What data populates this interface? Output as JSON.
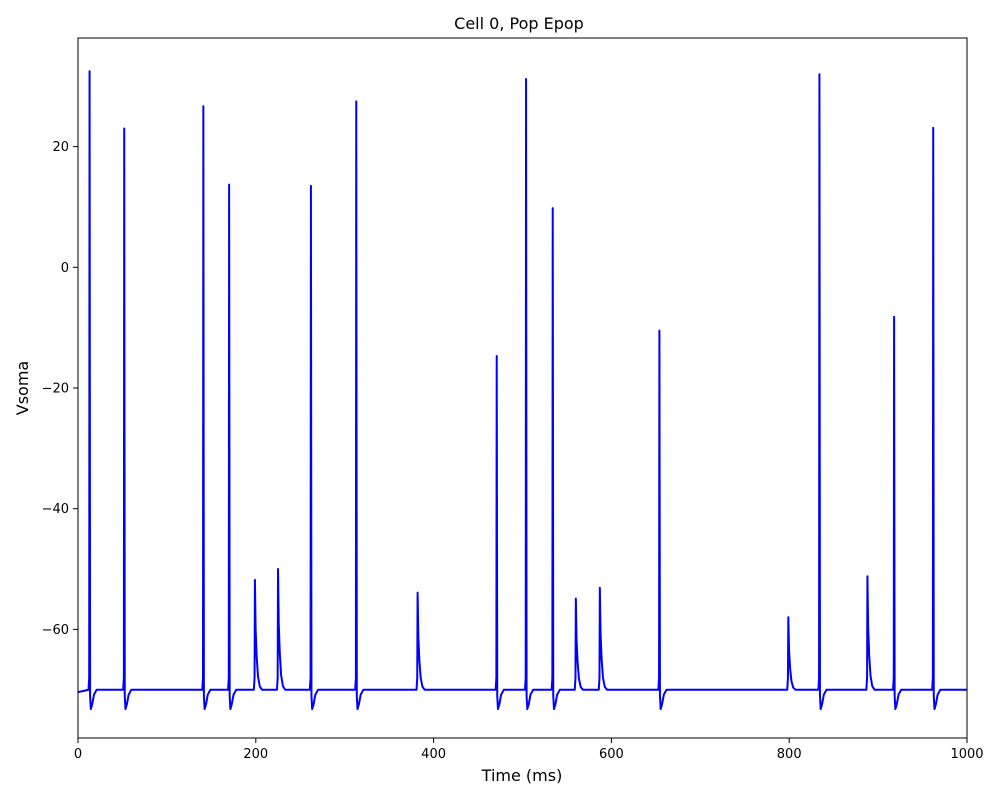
{
  "chart_data": {
    "type": "line",
    "title": "Cell 0, Pop Epop",
    "xlabel": "Time (ms)",
    "ylabel": "Vsoma",
    "xlim": [
      0,
      1000
    ],
    "ylim": [
      -78,
      38
    ],
    "x_ticks": [
      0,
      200,
      400,
      600,
      800,
      1000
    ],
    "x_tick_labels": [
      "0",
      "200",
      "400",
      "600",
      "800",
      "1000"
    ],
    "y_ticks": [
      -60,
      -40,
      -20,
      0,
      20
    ],
    "y_tick_labels": [
      "−60",
      "−40",
      "−20",
      "0",
      "20"
    ],
    "grid": false,
    "legend": "none",
    "series_color": "#0000ff",
    "series": [
      {
        "baseline": -70,
        "events": [
          {
            "t": 13,
            "peak": 32.5
          },
          {
            "t": 52,
            "peak": 23.0
          },
          {
            "t": 141,
            "peak": 26.7
          },
          {
            "t": 170,
            "peak": 13.7
          },
          {
            "t": 199,
            "peak": -51.8
          },
          {
            "t": 225,
            "peak": -50.0
          },
          {
            "t": 262,
            "peak": 13.5
          },
          {
            "t": 313,
            "peak": 27.5
          },
          {
            "t": 382,
            "peak": -53.9
          },
          {
            "t": 471,
            "peak": -14.7
          },
          {
            "t": 504,
            "peak": 31.2
          },
          {
            "t": 534,
            "peak": 9.8
          },
          {
            "t": 560,
            "peak": -54.9
          },
          {
            "t": 587,
            "peak": -53.1
          },
          {
            "t": 654,
            "peak": -10.5
          },
          {
            "t": 799,
            "peak": -58.0
          },
          {
            "t": 834,
            "peak": 32.0
          },
          {
            "t": 888,
            "peak": -51.2
          },
          {
            "t": 918,
            "peak": -8.2
          },
          {
            "t": 962,
            "peak": 23.1
          }
        ]
      }
    ]
  }
}
